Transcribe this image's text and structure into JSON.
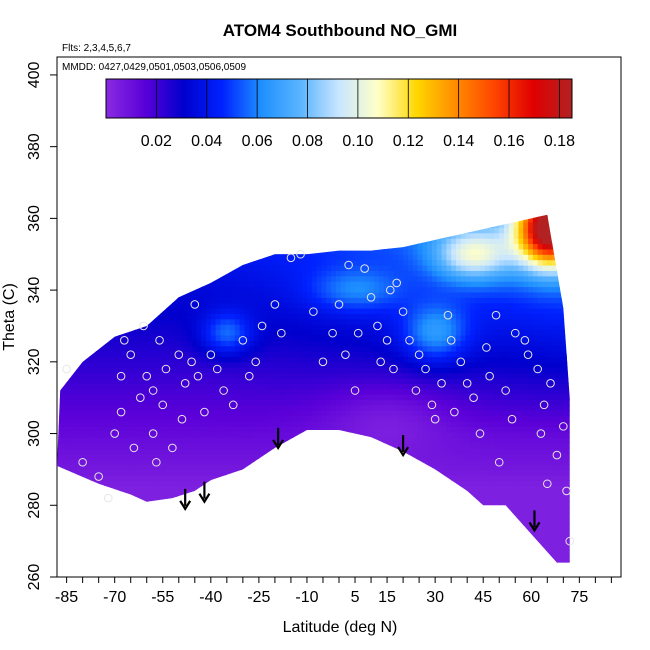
{
  "chart_data": {
    "type": "heatmap",
    "title": "ATOM4 Southbound NO_GMI",
    "flights_note": "Flts: 2,3,4,5,6,7",
    "dates_note": "MMDD: 0427,0429,0501,0503,0506,0509",
    "xlabel": "Latitude (deg N)",
    "ylabel": "Theta (C)",
    "xlim": [
      -88,
      88
    ],
    "ylim": [
      260,
      405
    ],
    "x_ticks": [
      -85,
      -70,
      -55,
      -40,
      -25,
      -10,
      5,
      15,
      30,
      45,
      60,
      75
    ],
    "x_minor_step": 5,
    "y_ticks": [
      260,
      280,
      300,
      320,
      340,
      360,
      380,
      400
    ],
    "colorbar": {
      "vmin": 0.0,
      "vmax": 0.185,
      "ticks": [
        "0.02",
        "0.04",
        "0.06",
        "0.08",
        "0.10",
        "0.12",
        "0.14",
        "0.16",
        "0.18"
      ],
      "tick_values": [
        0.02,
        0.04,
        0.06,
        0.08,
        0.1,
        0.12,
        0.14,
        0.16,
        0.18
      ],
      "colors": [
        "#8a2be2",
        "#5a00d8",
        "#0000cd",
        "#0022ff",
        "#1e90ff",
        "#5ab4ff",
        "#c8e6ff",
        "#ffffc8",
        "#ffd700",
        "#ff8c00",
        "#ff4500",
        "#e00000",
        "#b22222"
      ]
    },
    "lower_boundary": [
      [
        -88,
        291
      ],
      [
        -75,
        286
      ],
      [
        -65,
        283
      ],
      [
        -60,
        281
      ],
      [
        -52,
        282
      ],
      [
        -45,
        284
      ],
      [
        -40,
        287
      ],
      [
        -30,
        290
      ],
      [
        -20,
        296
      ],
      [
        -10,
        301
      ],
      [
        0,
        301
      ],
      [
        10,
        299
      ],
      [
        20,
        295
      ],
      [
        30,
        290
      ],
      [
        40,
        284
      ],
      [
        45,
        280
      ],
      [
        52,
        280
      ],
      [
        60,
        272
      ],
      [
        68,
        264
      ],
      [
        72,
        264
      ]
    ],
    "upper_boundary": [
      [
        -88,
        291
      ],
      [
        -87,
        312
      ],
      [
        -80,
        320
      ],
      [
        -70,
        327
      ],
      [
        -60,
        330
      ],
      [
        -50,
        338
      ],
      [
        -40,
        342
      ],
      [
        -30,
        347
      ],
      [
        -20,
        350
      ],
      [
        -10,
        350
      ],
      [
        0,
        351
      ],
      [
        10,
        351
      ],
      [
        20,
        352
      ],
      [
        30,
        354
      ],
      [
        40,
        356
      ],
      [
        50,
        358
      ],
      [
        60,
        360
      ],
      [
        65,
        361
      ],
      [
        70,
        335
      ],
      [
        72,
        310
      ],
      [
        72,
        264
      ]
    ],
    "field_description": "NO mixing ratio (ppbv) vs latitude and potential temperature",
    "samples": [
      [
        -85,
        318
      ],
      [
        -80,
        292
      ],
      [
        -75,
        288
      ],
      [
        -72,
        282
      ],
      [
        -70,
        300
      ],
      [
        -68,
        316
      ],
      [
        -68,
        306
      ],
      [
        -67,
        326
      ],
      [
        -65,
        322
      ],
      [
        -64,
        296
      ],
      [
        -62,
        310
      ],
      [
        -61,
        330
      ],
      [
        -60,
        316
      ],
      [
        -58,
        312
      ],
      [
        -58,
        300
      ],
      [
        -57,
        292
      ],
      [
        -56,
        326
      ],
      [
        -55,
        308
      ],
      [
        -54,
        318
      ],
      [
        -52,
        296
      ],
      [
        -50,
        322
      ],
      [
        -49,
        304
      ],
      [
        -48,
        314
      ],
      [
        -46,
        320
      ],
      [
        -45,
        336
      ],
      [
        -44,
        316
      ],
      [
        -42,
        306
      ],
      [
        -40,
        322
      ],
      [
        -38,
        318
      ],
      [
        -36,
        312
      ],
      [
        -33,
        308
      ],
      [
        -30,
        326
      ],
      [
        -28,
        316
      ],
      [
        -26,
        320
      ],
      [
        -24,
        330
      ],
      [
        -20,
        336
      ],
      [
        -18,
        328
      ],
      [
        -15,
        349
      ],
      [
        -12,
        350
      ],
      [
        -8,
        334
      ],
      [
        -5,
        320
      ],
      [
        -2,
        328
      ],
      [
        0,
        336
      ],
      [
        2,
        322
      ],
      [
        3,
        347
      ],
      [
        5,
        312
      ],
      [
        6,
        328
      ],
      [
        8,
        346
      ],
      [
        10,
        338
      ],
      [
        12,
        330
      ],
      [
        13,
        320
      ],
      [
        15,
        326
      ],
      [
        16,
        340
      ],
      [
        17,
        318
      ],
      [
        18,
        342
      ],
      [
        20,
        334
      ],
      [
        22,
        326
      ],
      [
        24,
        312
      ],
      [
        25,
        322
      ],
      [
        27,
        318
      ],
      [
        29,
        308
      ],
      [
        30,
        304
      ],
      [
        32,
        314
      ],
      [
        34,
        333
      ],
      [
        35,
        326
      ],
      [
        36,
        306
      ],
      [
        38,
        320
      ],
      [
        40,
        314
      ],
      [
        42,
        310
      ],
      [
        44,
        300
      ],
      [
        46,
        324
      ],
      [
        47,
        316
      ],
      [
        49,
        333
      ],
      [
        50,
        292
      ],
      [
        52,
        312
      ],
      [
        54,
        304
      ],
      [
        55,
        328
      ],
      [
        58,
        326
      ],
      [
        59,
        322
      ],
      [
        62,
        318
      ],
      [
        63,
        300
      ],
      [
        64,
        308
      ],
      [
        65,
        286
      ],
      [
        66,
        314
      ],
      [
        68,
        294
      ],
      [
        70,
        302
      ],
      [
        71,
        284
      ],
      [
        72,
        270
      ]
    ],
    "arrow_annotations": [
      {
        "lat": -48,
        "theta": 279
      },
      {
        "lat": -42,
        "theta": 281
      },
      {
        "lat": -19,
        "theta": 296
      },
      {
        "lat": 20,
        "theta": 294
      },
      {
        "lat": 61,
        "theta": 273
      }
    ]
  }
}
